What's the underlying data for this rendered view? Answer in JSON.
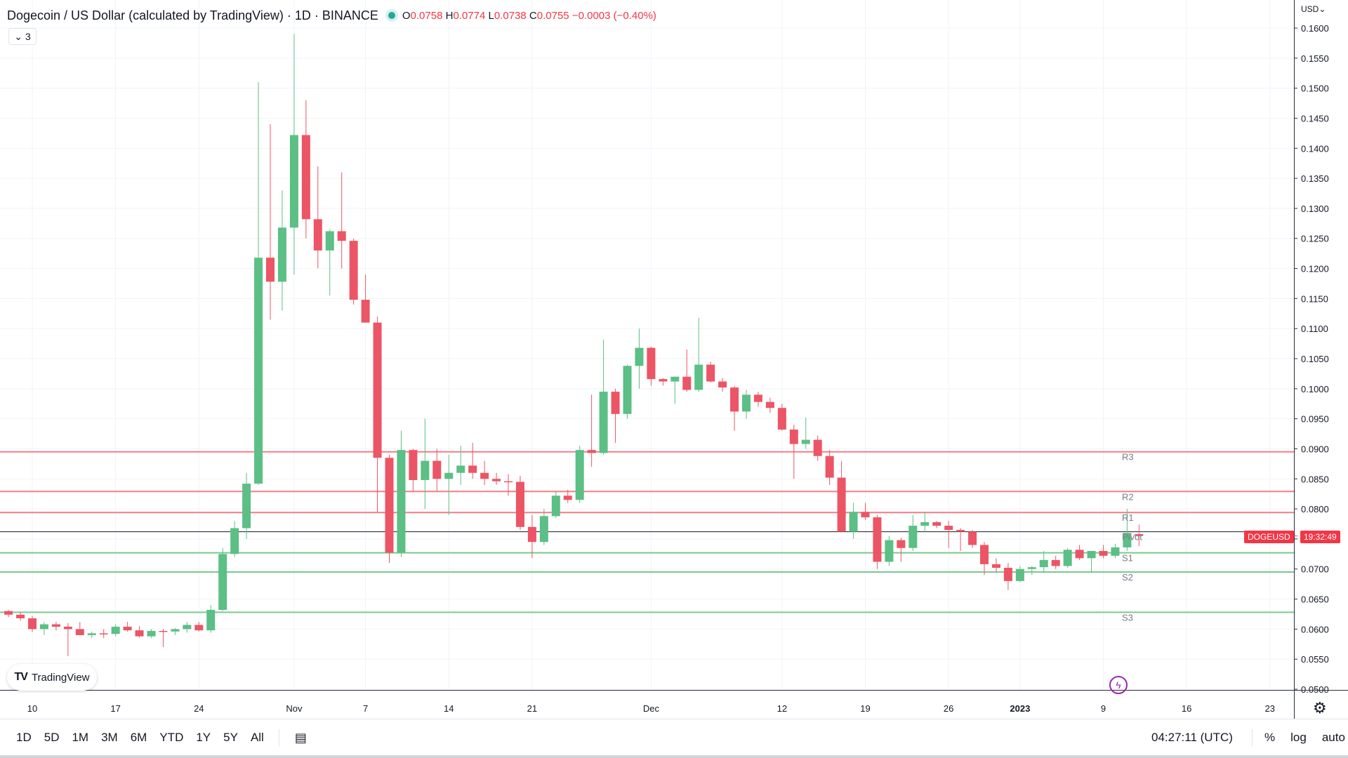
{
  "header": {
    "title": "Dogecoin / US Dollar (calculated by TradingView) · 1D · BINANCE",
    "open_label": "O",
    "open": "0.0758",
    "high_label": "H",
    "high": "0.0774",
    "low_label": "L",
    "low": "0.0738",
    "close_label": "C",
    "close": "0.0755",
    "change": "−0.0003 (−0.40%)",
    "indicator_count": "3",
    "chevron": "⌄"
  },
  "currency": "USD⌄",
  "logo_text": "TradingView",
  "logo_mark": "TV",
  "bolt_glyph": "ϟ",
  "gear_glyph": "⚙",
  "symbol_tag": "DOGEUSD",
  "countdown_tag": "19:32:49",
  "colors": {
    "up": "#26a69a",
    "down": "#f23645",
    "up_candle": "#5cbf85",
    "down_candle": "#ec5565",
    "resistance": "#f47d86",
    "support": "#7ac98d",
    "pivot": "#131722"
  },
  "toolbar": {
    "ranges": [
      "1D",
      "5D",
      "1M",
      "3M",
      "6M",
      "YTD",
      "1Y",
      "5Y",
      "All"
    ],
    "calendar_icon": "▤",
    "clock": "04:27:11 (UTC)",
    "percent": "%",
    "log": "log",
    "auto": "auto"
  },
  "chart_data": {
    "type": "candlestick",
    "title": "Dogecoin / US Dollar (calculated by TradingView) · 1D · BINANCE",
    "ylim": [
      0.05,
      0.16
    ],
    "y_ticks": [
      "0.1600",
      "0.1550",
      "0.1500",
      "0.1450",
      "0.1400",
      "0.1350",
      "0.1300",
      "0.1250",
      "0.1200",
      "0.1150",
      "0.1100",
      "0.1050",
      "0.1000",
      "0.0950",
      "0.0900",
      "0.0850",
      "0.0800",
      "0.0750",
      "0.0700",
      "0.0650",
      "0.0600",
      "0.0550",
      "0.0500"
    ],
    "x_ticks": [
      {
        "label": "10",
        "day": 0
      },
      {
        "label": "17",
        "day": 7
      },
      {
        "label": "24",
        "day": 14
      },
      {
        "label": "Nov",
        "day": 22
      },
      {
        "label": "7",
        "day": 28
      },
      {
        "label": "14",
        "day": 35
      },
      {
        "label": "21",
        "day": 42
      },
      {
        "label": "Dec",
        "day": 52
      },
      {
        "label": "12",
        "day": 63
      },
      {
        "label": "19",
        "day": 70
      },
      {
        "label": "26",
        "day": 77
      },
      {
        "label": "2023",
        "day": 83
      },
      {
        "label": "9",
        "day": 90
      },
      {
        "label": "16",
        "day": 97
      },
      {
        "label": "23",
        "day": 104
      }
    ],
    "levels": [
      {
        "name": "R3",
        "value": 0.0895,
        "kind": "resistance"
      },
      {
        "name": "R2",
        "value": 0.0829,
        "kind": "resistance"
      },
      {
        "name": "R1",
        "value": 0.0794,
        "kind": "resistance"
      },
      {
        "name": "Pivot",
        "value": 0.0762,
        "kind": "pivot"
      },
      {
        "name": "S1",
        "value": 0.0727,
        "kind": "support"
      },
      {
        "name": "S2",
        "value": 0.0695,
        "kind": "support"
      },
      {
        "name": "S3",
        "value": 0.0628,
        "kind": "support"
      }
    ],
    "current_price": 0.0755,
    "first_day": -2,
    "candles": [
      [
        0.063,
        0.0632,
        0.062,
        0.0624
      ],
      [
        0.0624,
        0.0628,
        0.0614,
        0.0618
      ],
      [
        0.0618,
        0.0622,
        0.0595,
        0.06
      ],
      [
        0.06,
        0.0612,
        0.059,
        0.0608
      ],
      [
        0.0608,
        0.0612,
        0.0598,
        0.0604
      ],
      [
        0.0604,
        0.061,
        0.0555,
        0.06
      ],
      [
        0.06,
        0.0612,
        0.059,
        0.059
      ],
      [
        0.059,
        0.0596,
        0.0585,
        0.0593
      ],
      [
        0.0593,
        0.06,
        0.0585,
        0.0592
      ],
      [
        0.0592,
        0.0608,
        0.0588,
        0.0604
      ],
      [
        0.0604,
        0.0612,
        0.0596,
        0.0598
      ],
      [
        0.0598,
        0.0605,
        0.0586,
        0.0588
      ],
      [
        0.0588,
        0.06,
        0.0585,
        0.0597
      ],
      [
        0.0597,
        0.06,
        0.057,
        0.0596
      ],
      [
        0.0596,
        0.0602,
        0.059,
        0.06
      ],
      [
        0.06,
        0.0612,
        0.0594,
        0.0607
      ],
      [
        0.0607,
        0.0612,
        0.0596,
        0.0598
      ],
      [
        0.0598,
        0.064,
        0.0594,
        0.0632
      ],
      [
        0.0632,
        0.0735,
        0.063,
        0.0725
      ],
      [
        0.0725,
        0.078,
        0.072,
        0.0768
      ],
      [
        0.0768,
        0.086,
        0.075,
        0.0842
      ],
      [
        0.0842,
        0.151,
        0.084,
        0.1218
      ],
      [
        0.1218,
        0.144,
        0.1115,
        0.1178
      ],
      [
        0.1178,
        0.133,
        0.113,
        0.1268
      ],
      [
        0.1268,
        0.159,
        0.119,
        0.1422
      ],
      [
        0.1422,
        0.148,
        0.125,
        0.1282
      ],
      [
        0.1282,
        0.137,
        0.12,
        0.123
      ],
      [
        0.123,
        0.1265,
        0.1155,
        0.1262
      ],
      [
        0.1262,
        0.136,
        0.12,
        0.1246
      ],
      [
        0.1246,
        0.125,
        0.114,
        0.1148
      ],
      [
        0.1148,
        0.119,
        0.111,
        0.111
      ],
      [
        0.111,
        0.112,
        0.0795,
        0.0885
      ],
      [
        0.0885,
        0.089,
        0.071,
        0.0727
      ],
      [
        0.0727,
        0.093,
        0.072,
        0.0898
      ],
      [
        0.0898,
        0.09,
        0.083,
        0.0848
      ],
      [
        0.0848,
        0.095,
        0.08,
        0.088
      ],
      [
        0.088,
        0.09,
        0.083,
        0.085
      ],
      [
        0.085,
        0.089,
        0.079,
        0.086
      ],
      [
        0.086,
        0.0905,
        0.084,
        0.0872
      ],
      [
        0.0872,
        0.091,
        0.085,
        0.086
      ],
      [
        0.086,
        0.088,
        0.084,
        0.085
      ],
      [
        0.085,
        0.086,
        0.084,
        0.0846
      ],
      [
        0.0846,
        0.0858,
        0.0822,
        0.0845
      ],
      [
        0.0845,
        0.0855,
        0.0765,
        0.077
      ],
      [
        0.077,
        0.079,
        0.0718,
        0.0745
      ],
      [
        0.0745,
        0.08,
        0.074,
        0.0788
      ],
      [
        0.0788,
        0.083,
        0.0785,
        0.0822
      ],
      [
        0.0822,
        0.0832,
        0.081,
        0.0815
      ],
      [
        0.0815,
        0.0905,
        0.081,
        0.0898
      ],
      [
        0.0898,
        0.099,
        0.087,
        0.0893
      ],
      [
        0.0893,
        0.1082,
        0.089,
        0.0995
      ],
      [
        0.0995,
        0.1,
        0.091,
        0.0958
      ],
      [
        0.0958,
        0.104,
        0.095,
        0.1038
      ],
      [
        0.1038,
        0.11,
        0.1,
        0.1068
      ],
      [
        0.1068,
        0.107,
        0.1005,
        0.1016
      ],
      [
        0.1016,
        0.1018,
        0.1005,
        0.1012
      ],
      [
        0.1012,
        0.102,
        0.0975,
        0.102
      ],
      [
        0.102,
        0.1065,
        0.0995,
        0.0998
      ],
      [
        0.0998,
        0.1118,
        0.0995,
        0.104
      ],
      [
        0.104,
        0.1045,
        0.101,
        0.1012
      ],
      [
        0.1012,
        0.1018,
        0.0995,
        0.1002
      ],
      [
        0.1002,
        0.1005,
        0.093,
        0.0962
      ],
      [
        0.0962,
        0.0998,
        0.095,
        0.099
      ],
      [
        0.099,
        0.0995,
        0.097,
        0.0978
      ],
      [
        0.0978,
        0.0985,
        0.096,
        0.0968
      ],
      [
        0.0968,
        0.0975,
        0.093,
        0.0932
      ],
      [
        0.0932,
        0.094,
        0.085,
        0.0908
      ],
      [
        0.0908,
        0.0952,
        0.09,
        0.0915
      ],
      [
        0.0915,
        0.0922,
        0.088,
        0.0888
      ],
      [
        0.0888,
        0.0898,
        0.084,
        0.0852
      ],
      [
        0.0852,
        0.088,
        0.077,
        0.0762
      ],
      [
        0.0762,
        0.081,
        0.075,
        0.0795
      ],
      [
        0.0795,
        0.081,
        0.0782,
        0.0786
      ],
      [
        0.0786,
        0.079,
        0.07,
        0.0712
      ],
      [
        0.0712,
        0.0755,
        0.0705,
        0.0748
      ],
      [
        0.0748,
        0.0752,
        0.0712,
        0.0735
      ],
      [
        0.0735,
        0.079,
        0.073,
        0.0772
      ],
      [
        0.0772,
        0.0795,
        0.0762,
        0.0778
      ],
      [
        0.0778,
        0.078,
        0.0768,
        0.0772
      ],
      [
        0.0772,
        0.078,
        0.0735,
        0.0765
      ],
      [
        0.0765,
        0.0768,
        0.073,
        0.0762
      ],
      [
        0.0762,
        0.0765,
        0.0735,
        0.074
      ],
      [
        0.074,
        0.0745,
        0.069,
        0.0708
      ],
      [
        0.0708,
        0.0718,
        0.0695,
        0.0702
      ],
      [
        0.0702,
        0.071,
        0.0665,
        0.068
      ],
      [
        0.068,
        0.0705,
        0.0678,
        0.07
      ],
      [
        0.07,
        0.0705,
        0.069,
        0.0703
      ],
      [
        0.0703,
        0.073,
        0.0695,
        0.0715
      ],
      [
        0.0715,
        0.0722,
        0.07,
        0.0705
      ],
      [
        0.0705,
        0.0735,
        0.0702,
        0.0732
      ],
      [
        0.0732,
        0.074,
        0.0715,
        0.0718
      ],
      [
        0.0718,
        0.073,
        0.0695,
        0.073
      ],
      [
        0.073,
        0.074,
        0.0718,
        0.0722
      ],
      [
        0.0722,
        0.0742,
        0.0718,
        0.0736
      ],
      [
        0.0736,
        0.08,
        0.073,
        0.076
      ],
      [
        0.0758,
        0.0774,
        0.0738,
        0.0755
      ]
    ]
  }
}
